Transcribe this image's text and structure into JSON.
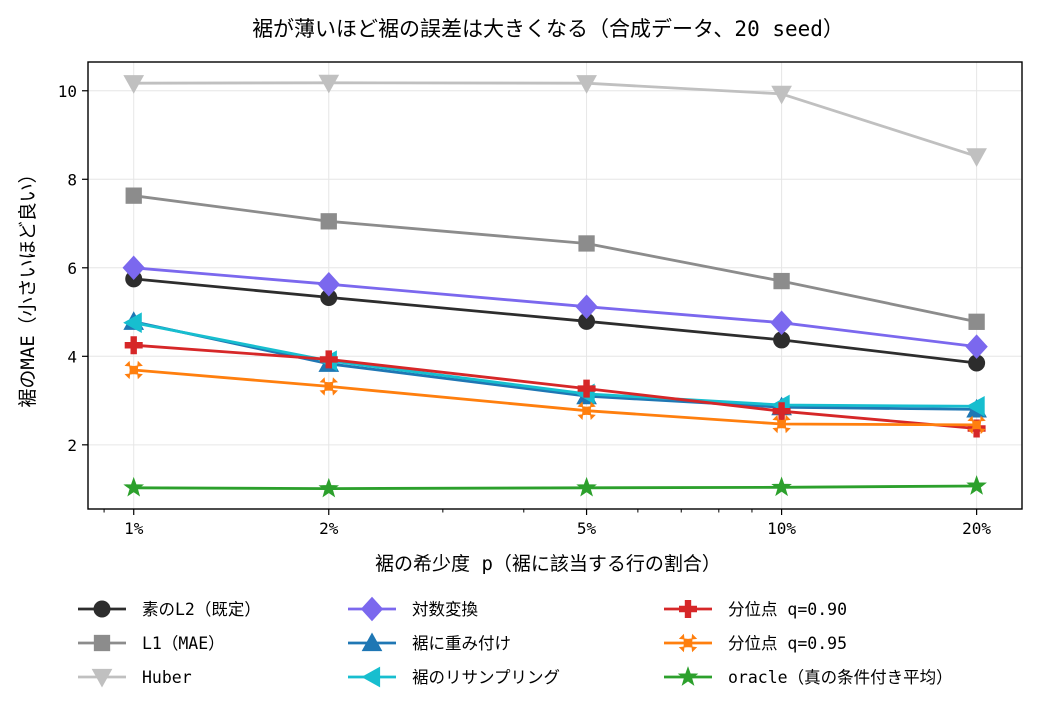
{
  "chart_data": {
    "type": "line",
    "title": "裾が薄いほど裾の誤差は大きくなる（合成データ、20 seed）",
    "xlabel": "裾の希少度 p（裾に該当する行の割合）",
    "ylabel": "裾のMAE（小さいほど良い）",
    "x_scale": "log",
    "x": [
      0.01,
      0.02,
      0.05,
      0.1,
      0.2
    ],
    "x_tick_labels": [
      "1%",
      "2%",
      "5%",
      "10%",
      "20%"
    ],
    "xlim": [
      0.0085,
      0.235
    ],
    "ylim": [
      0.55,
      10.65
    ],
    "y_ticks": [
      2,
      4,
      6,
      8,
      10
    ],
    "y_tick_labels": [
      "2",
      "4",
      "6",
      "8",
      "10"
    ],
    "grid": true,
    "legend_position": "below plot, 3 columns",
    "series": [
      {
        "name": "素のL2（既定）",
        "color": "#2d2d2d",
        "marker": "circle",
        "values": [
          5.75,
          5.33,
          4.79,
          4.37,
          3.85
        ]
      },
      {
        "name": "L1（MAE）",
        "color": "#8c8c8c",
        "marker": "square",
        "values": [
          7.63,
          7.05,
          6.55,
          5.7,
          4.78
        ]
      },
      {
        "name": "Huber",
        "color": "#c0c0c0",
        "marker": "triangle-down",
        "values": [
          10.17,
          10.18,
          10.17,
          9.93,
          8.52
        ]
      },
      {
        "name": "対数変換",
        "color": "#7b68ee",
        "marker": "diamond",
        "values": [
          6.0,
          5.63,
          5.12,
          4.76,
          4.22
        ]
      },
      {
        "name": "裾に重み付け",
        "color": "#1f77b4",
        "marker": "triangle-up",
        "values": [
          4.78,
          3.83,
          3.1,
          2.85,
          2.8
        ]
      },
      {
        "name": "裾のリサンプリング",
        "color": "#17becf",
        "marker": "triangle-left",
        "values": [
          4.76,
          3.9,
          3.15,
          2.9,
          2.87
        ]
      },
      {
        "name": "分位点 q=0.90",
        "color": "#d62728",
        "marker": "plus",
        "values": [
          4.25,
          3.93,
          3.27,
          2.76,
          2.37
        ]
      },
      {
        "name": "分位点 q=0.95",
        "color": "#ff7f0e",
        "marker": "x",
        "values": [
          3.69,
          3.32,
          2.77,
          2.47,
          2.45
        ]
      },
      {
        "name": "oracle（真の条件付き平均）",
        "color": "#2ca02c",
        "marker": "star",
        "values": [
          1.03,
          1.01,
          1.03,
          1.04,
          1.07
        ]
      }
    ]
  }
}
